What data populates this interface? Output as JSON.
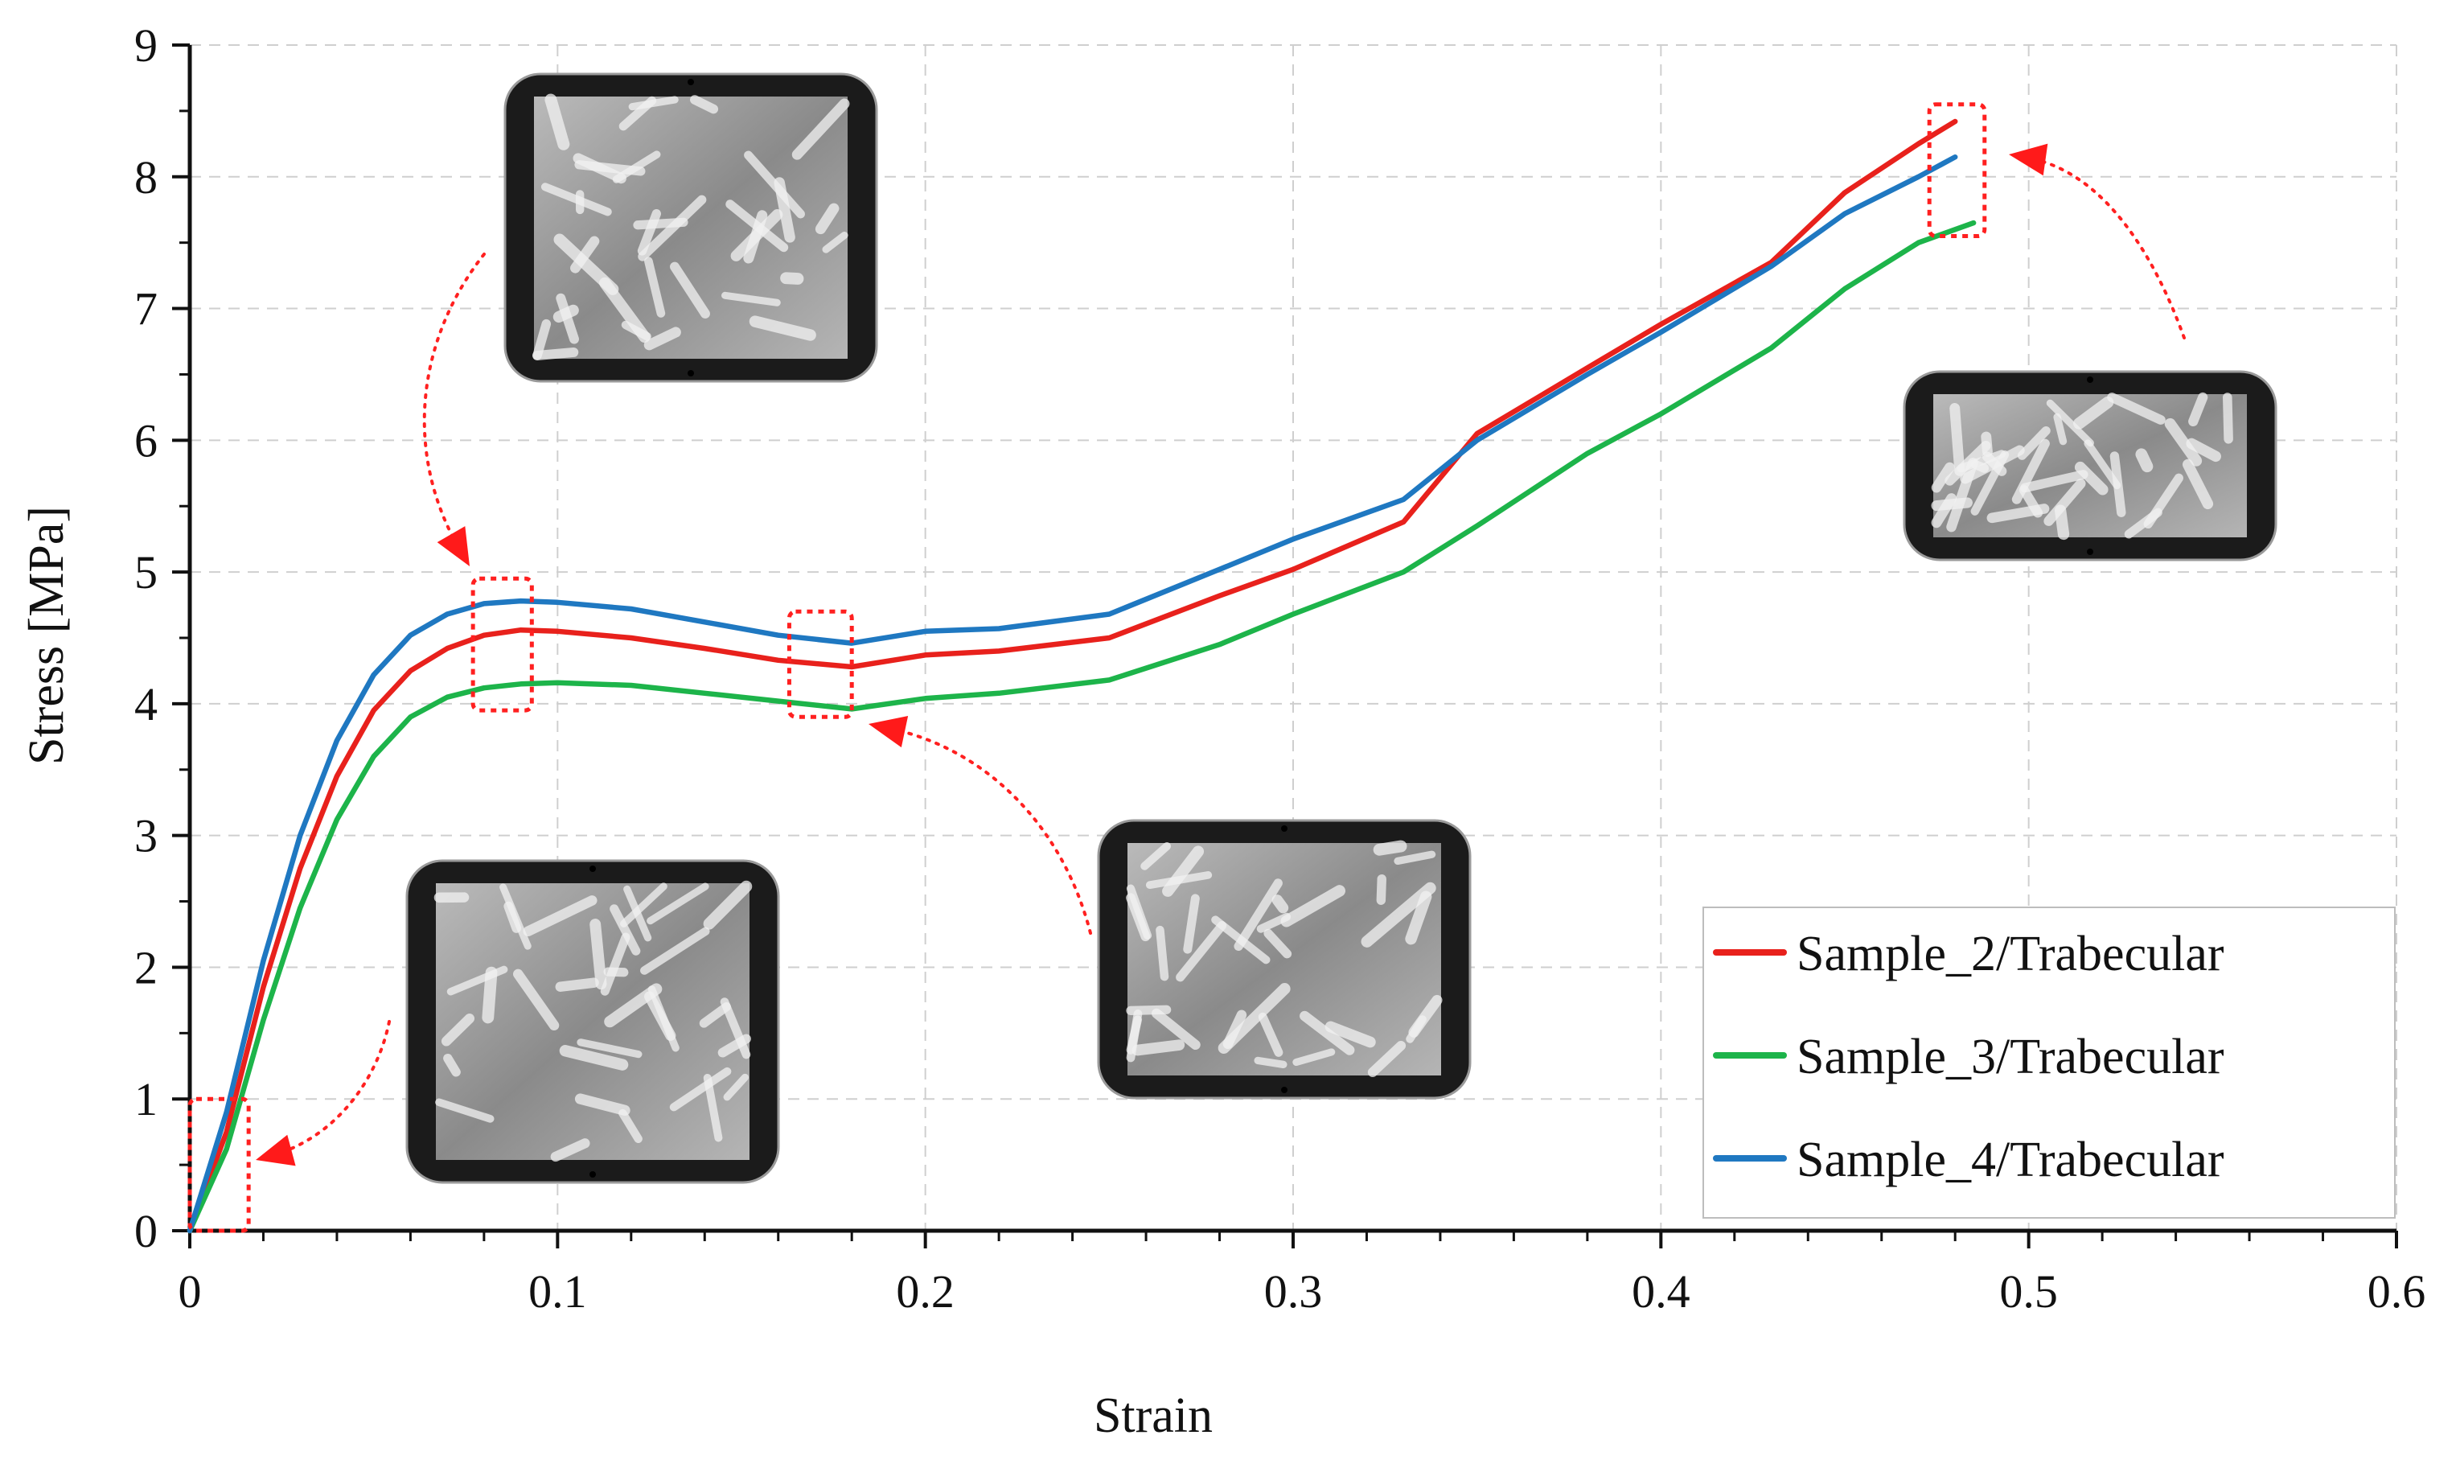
{
  "chart_data": {
    "type": "line",
    "xlabel": "Strain",
    "ylabel": "Stress [MPa]",
    "xlim": [
      0,
      0.6
    ],
    "ylim": [
      0,
      9
    ],
    "xticks": [
      "0",
      "0.1",
      "0.2",
      "0.3",
      "0.4",
      "0.5",
      "0.6"
    ],
    "yticks": [
      "0",
      "1",
      "2",
      "3",
      "4",
      "5",
      "6",
      "7",
      "8",
      "9"
    ],
    "grid": true,
    "legend_position": "bottom-right",
    "series": [
      {
        "name": "Sample_2/Trabecular",
        "color": "#e8211c",
        "x": [
          0,
          0.01,
          0.02,
          0.03,
          0.04,
          0.05,
          0.06,
          0.07,
          0.08,
          0.09,
          0.1,
          0.12,
          0.14,
          0.16,
          0.18,
          0.2,
          0.22,
          0.25,
          0.28,
          0.3,
          0.33,
          0.35,
          0.38,
          0.4,
          0.43,
          0.45,
          0.47,
          0.48
        ],
        "y": [
          0,
          0.75,
          1.85,
          2.75,
          3.45,
          3.95,
          4.25,
          4.42,
          4.52,
          4.56,
          4.55,
          4.5,
          4.42,
          4.33,
          4.28,
          4.37,
          4.4,
          4.5,
          4.82,
          5.02,
          5.38,
          6.05,
          6.55,
          6.88,
          7.35,
          7.88,
          8.25,
          8.42
        ]
      },
      {
        "name": "Sample_3/Trabecular",
        "color": "#1db44a",
        "x": [
          0,
          0.01,
          0.02,
          0.03,
          0.04,
          0.05,
          0.06,
          0.07,
          0.08,
          0.09,
          0.1,
          0.12,
          0.14,
          0.16,
          0.18,
          0.2,
          0.22,
          0.25,
          0.28,
          0.3,
          0.33,
          0.35,
          0.38,
          0.4,
          0.43,
          0.45,
          0.47,
          0.485
        ],
        "y": [
          0,
          0.62,
          1.6,
          2.45,
          3.12,
          3.6,
          3.9,
          4.05,
          4.12,
          4.15,
          4.16,
          4.14,
          4.08,
          4.02,
          3.96,
          4.04,
          4.08,
          4.18,
          4.45,
          4.68,
          5.0,
          5.35,
          5.9,
          6.2,
          6.7,
          7.15,
          7.5,
          7.65
        ]
      },
      {
        "name": "Sample_4/Trabecular",
        "color": "#1f78c1",
        "x": [
          0,
          0.01,
          0.02,
          0.03,
          0.04,
          0.05,
          0.06,
          0.07,
          0.08,
          0.09,
          0.1,
          0.12,
          0.14,
          0.16,
          0.18,
          0.2,
          0.22,
          0.25,
          0.28,
          0.3,
          0.33,
          0.35,
          0.38,
          0.4,
          0.43,
          0.45,
          0.47,
          0.48
        ],
        "y": [
          0,
          0.9,
          2.05,
          3.0,
          3.72,
          4.22,
          4.52,
          4.68,
          4.76,
          4.78,
          4.77,
          4.72,
          4.62,
          4.52,
          4.46,
          4.55,
          4.57,
          4.68,
          5.02,
          5.25,
          5.55,
          6.0,
          6.5,
          6.82,
          7.32,
          7.72,
          8.0,
          8.15
        ]
      }
    ],
    "insets": [
      {
        "id": "inset-initial",
        "label": "initial compression image",
        "box_x": [
          0.0,
          0.016
        ],
        "box_y": [
          0,
          1.0
        ]
      },
      {
        "id": "inset-first-peak",
        "label": "first peak image",
        "box_x": [
          0.077,
          0.093
        ],
        "box_y": [
          3.95,
          4.95
        ]
      },
      {
        "id": "inset-valley",
        "label": "stress plateau valley image",
        "box_x": [
          0.163,
          0.18
        ],
        "box_y": [
          3.9,
          4.7
        ]
      },
      {
        "id": "inset-densification",
        "label": "densification image",
        "box_x": [
          0.473,
          0.488
        ],
        "box_y": [
          7.55,
          8.55
        ]
      }
    ]
  }
}
